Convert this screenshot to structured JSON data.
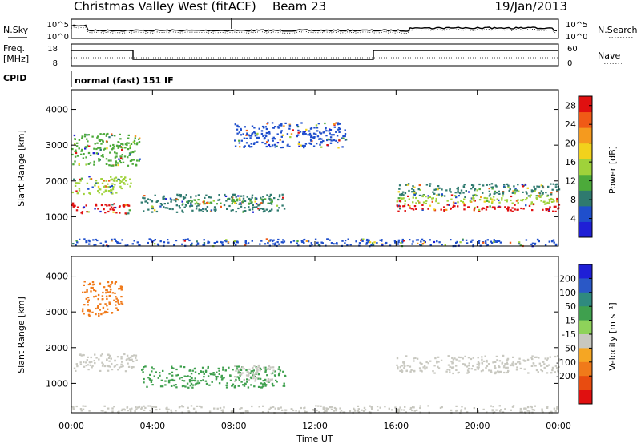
{
  "header": {
    "station": "Christmas Valley West (fitACF)",
    "beam": "Beam 23",
    "date": "19/Jan/2013"
  },
  "top_panels": {
    "nsky_label": "N.Sky",
    "nsearch_label": "N.Search",
    "noise_ticks": [
      "10^5",
      "10^0"
    ],
    "freq_label_1": "Freq.",
    "freq_label_2": "[MHz]",
    "freq_ticks": [
      "18",
      "8"
    ],
    "nave_label": "Nave",
    "nave_ticks": [
      "60",
      "0"
    ],
    "cpid_label": "CPID",
    "cpid_value": "normal (fast) 151 IF"
  },
  "colors": {
    "power": [
      "#1f1fd6",
      "#1f4fcc",
      "#2f7a6f",
      "#4caa3a",
      "#9fd23a",
      "#f2d21c",
      "#f59a1e",
      "#f05a16",
      "#e01010"
    ],
    "velocity": [
      "#1f1fd6",
      "#2a58c6",
      "#2f8a7e",
      "#3fa04e",
      "#8ed25a",
      "#c8c8c0",
      "#f5a623",
      "#f07a1a",
      "#e84c10",
      "#e01010"
    ],
    "ground_scatter": "#c8c8c0"
  },
  "chart_data": [
    {
      "type": "heatmap",
      "title": "Power",
      "xlabel": "",
      "ylabel": "Slant Range [km]",
      "x_ticks": [
        "00:00",
        "04:00",
        "08:00",
        "12:00",
        "16:00",
        "20:00",
        "00:00"
      ],
      "xlim_hours": [
        0,
        24
      ],
      "y_ticks": [
        1000,
        2000,
        3000,
        4000
      ],
      "ylim": [
        180,
        4550
      ],
      "colorbar_label": "Power [dB]",
      "colorbar_ticks": [
        4,
        8,
        12,
        16,
        20,
        24,
        28
      ],
      "colorbar_range": [
        0,
        30
      ],
      "regions": [
        {
          "t0": 0.0,
          "t1": 2.9,
          "r_center": 1250,
          "r_width": 300,
          "value": 27
        },
        {
          "t0": 0.0,
          "t1": 2.9,
          "r_center": 1900,
          "r_width": 500,
          "value": 14
        },
        {
          "t0": 0.0,
          "t1": 3.4,
          "r_center": 2900,
          "r_width": 900,
          "value": 10
        },
        {
          "t0": 3.4,
          "t1": 10.5,
          "r_center": 1400,
          "r_width": 500,
          "value": 7
        },
        {
          "t0": 5.0,
          "t1": 10.0,
          "r_center": 1450,
          "r_width": 150,
          "value": 13
        },
        {
          "t0": 8.0,
          "t1": 13.5,
          "r_center": 3300,
          "r_width": 700,
          "value": 5
        },
        {
          "t0": 16.0,
          "t1": 24.0,
          "r_center": 1780,
          "r_width": 350,
          "value": 8
        },
        {
          "t0": 16.0,
          "t1": 24.0,
          "r_center": 1500,
          "r_width": 250,
          "value": 16
        },
        {
          "t0": 16.0,
          "t1": 24.0,
          "r_center": 1270,
          "r_width": 200,
          "value": 27
        },
        {
          "t0": 0.0,
          "t1": 24.0,
          "r_center": 300,
          "r_width": 200,
          "value": 6
        }
      ]
    },
    {
      "type": "heatmap",
      "title": "Velocity",
      "xlabel": "Time UT",
      "ylabel": "Slant Range [km]",
      "x_ticks": [
        "00:00",
        "04:00",
        "08:00",
        "12:00",
        "16:00",
        "20:00",
        "00:00"
      ],
      "xlim_hours": [
        0,
        24
      ],
      "y_ticks": [
        1000,
        2000,
        3000,
        4000
      ],
      "ylim": [
        180,
        4550
      ],
      "colorbar_label": "Velocity [m s⁻¹]",
      "colorbar_ticks": [
        "200",
        "100",
        "50",
        "15",
        "-15",
        "-50",
        "-100",
        "-200"
      ],
      "regions": [
        {
          "t0": 0.0,
          "t1": 3.2,
          "r_center": 1600,
          "r_width": 500,
          "value": "ground"
        },
        {
          "t0": 0.5,
          "t1": 2.5,
          "r_center": 3400,
          "r_width": 1000,
          "value": -150
        },
        {
          "t0": 3.4,
          "t1": 10.5,
          "r_center": 1200,
          "r_width": 600,
          "value": 40
        },
        {
          "t0": 8.0,
          "t1": 10.0,
          "r_center": 1300,
          "r_width": 500,
          "value": -40
        },
        {
          "t0": 16.0,
          "t1": 24.0,
          "r_center": 1550,
          "r_width": 500,
          "value": "ground"
        },
        {
          "t0": 0.0,
          "t1": 24.0,
          "r_center": 300,
          "r_width": 200,
          "value": -40
        }
      ]
    }
  ]
}
